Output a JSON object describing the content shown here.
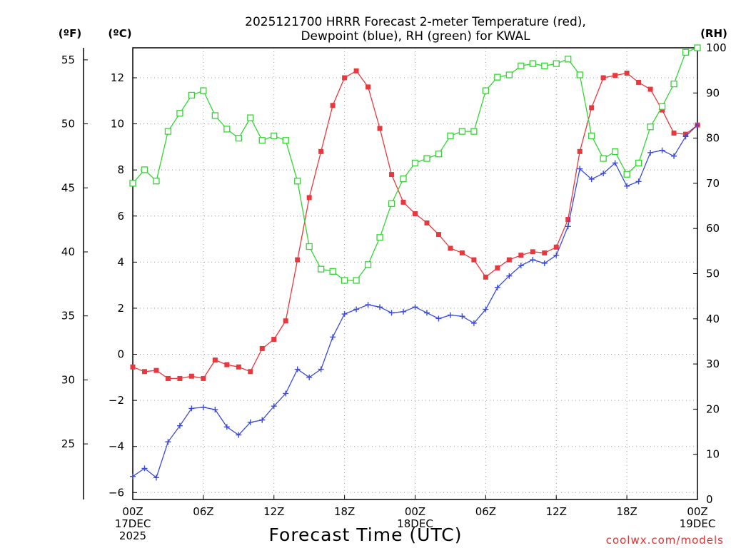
{
  "chart_data": {
    "type": "line",
    "title": [
      "2025121700 HRRR Forecast 2-meter Temperature (red),",
      "Dewpoint (blue), RH (green) for KWAL"
    ],
    "xlabel": "Forecast Time (UTC)",
    "credit": "coolwx.com/models",
    "unit_labels": {
      "fahrenheit": "(ºF)",
      "celsius": "(ºC)",
      "rh": "(RH)"
    },
    "x_hours": [
      0,
      1,
      2,
      3,
      4,
      5,
      6,
      7,
      8,
      9,
      10,
      11,
      12,
      13,
      14,
      15,
      16,
      17,
      18,
      19,
      20,
      21,
      22,
      23,
      24,
      25,
      26,
      27,
      28,
      29,
      30,
      31,
      32,
      33,
      34,
      35,
      36,
      37,
      38,
      39,
      40,
      41,
      42,
      43,
      44,
      45,
      46,
      47,
      48
    ],
    "x_ticks": [
      {
        "hour": 0,
        "lines": [
          "00Z",
          "17DEC",
          "2025"
        ]
      },
      {
        "hour": 6,
        "lines": [
          "06Z"
        ]
      },
      {
        "hour": 12,
        "lines": [
          "12Z"
        ]
      },
      {
        "hour": 18,
        "lines": [
          "18Z"
        ]
      },
      {
        "hour": 24,
        "lines": [
          "00Z",
          "18DEC"
        ]
      },
      {
        "hour": 30,
        "lines": [
          "06Z"
        ]
      },
      {
        "hour": 36,
        "lines": [
          "12Z"
        ]
      },
      {
        "hour": 42,
        "lines": [
          "18Z"
        ]
      },
      {
        "hour": 48,
        "lines": [
          "00Z",
          "19DEC"
        ]
      }
    ],
    "xlim": [
      0,
      48
    ],
    "y_left_celsius": {
      "ylim": [
        -6.3,
        13.3
      ],
      "ticks": [
        -6,
        -4,
        -2,
        0,
        2,
        4,
        6,
        8,
        10,
        12
      ]
    },
    "y_left_fahrenheit": {
      "ticks": [
        25,
        30,
        35,
        40,
        45,
        50,
        55
      ]
    },
    "y_right_rh": {
      "ylim": [
        0,
        100
      ],
      "ticks": [
        0,
        10,
        20,
        30,
        40,
        50,
        60,
        70,
        80,
        90,
        100
      ]
    },
    "grid": true,
    "colors": {
      "temperature": "#e8383d",
      "dewpoint": "#3a4bdc",
      "rh": "#33d633",
      "credit": "#e03030"
    },
    "series": [
      {
        "axis": "celsius",
        "marker": "filled-square",
        "values": [
          -0.55,
          -0.75,
          -0.7,
          -1.05,
          -1.05,
          -0.95,
          -1.05,
          -0.25,
          -0.45,
          -0.55,
          -0.75,
          0.25,
          0.65,
          1.45,
          4.1,
          6.8,
          8.8,
          10.8,
          12.0,
          12.3,
          11.6,
          9.8,
          7.8,
          6.6,
          6.1,
          5.7,
          5.2,
          4.6,
          4.4,
          4.1,
          3.35,
          3.75,
          4.1,
          4.3,
          4.45,
          4.4,
          4.65,
          5.85,
          8.8,
          10.7,
          12.0,
          12.1,
          12.2,
          11.8,
          11.5,
          10.6,
          9.6,
          9.55,
          9.95
        ]
      },
      {
        "axis": "celsius",
        "marker": "plus",
        "values": [
          -5.3,
          -4.95,
          -5.35,
          -3.8,
          -3.1,
          -2.35,
          -2.3,
          -2.4,
          -3.15,
          -3.5,
          -2.95,
          -2.85,
          -2.25,
          -1.7,
          -0.65,
          -1.0,
          -0.65,
          0.75,
          1.75,
          1.95,
          2.15,
          2.05,
          1.8,
          1.85,
          2.05,
          1.8,
          1.55,
          1.7,
          1.65,
          1.35,
          1.95,
          2.9,
          3.4,
          3.85,
          4.1,
          3.95,
          4.3,
          5.55,
          8.05,
          7.6,
          7.85,
          8.3,
          7.3,
          7.5,
          8.75,
          8.85,
          8.6,
          9.45,
          9.95
        ]
      },
      {
        "axis": "rh",
        "marker": "open-square",
        "values": [
          70,
          73,
          70.5,
          81.5,
          85.5,
          89.5,
          90.5,
          85,
          82,
          80,
          84.5,
          79.5,
          80.5,
          79.5,
          70.5,
          56,
          51,
          50.5,
          48.5,
          48.5,
          52,
          58,
          65.5,
          71,
          74.5,
          75.5,
          76.5,
          80.5,
          81.5,
          81.5,
          90.5,
          93.5,
          94,
          96,
          96.5,
          96,
          96.5,
          97.5,
          94,
          80.5,
          75.5,
          77,
          72,
          74.5,
          82.5,
          87,
          92,
          99,
          100
        ]
      }
    ]
  }
}
